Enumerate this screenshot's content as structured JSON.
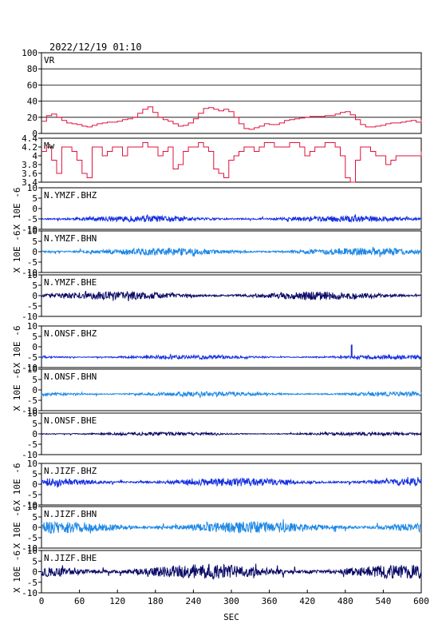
{
  "header": {
    "timestamp": "2022/12/19 01:10"
  },
  "chart_data": [
    {
      "type": "line",
      "label": "VR",
      "ylim": [
        0,
        100
      ],
      "yticks": [
        0,
        20,
        40,
        60,
        80,
        100
      ],
      "grid": true,
      "color": "#e0103a",
      "x": [
        0,
        8,
        16,
        24,
        32,
        40,
        48,
        56,
        64,
        72,
        80,
        88,
        96,
        104,
        112,
        120,
        128,
        136,
        144,
        152,
        160,
        168,
        176,
        184,
        192,
        200,
        208,
        216,
        224,
        232,
        240,
        248,
        256,
        264,
        272,
        280,
        288,
        296,
        304,
        312,
        320,
        328,
        336,
        344,
        352,
        360,
        368,
        376,
        384,
        392,
        400,
        408,
        416,
        424,
        432,
        440,
        448,
        456,
        464,
        472,
        480,
        488,
        496,
        504,
        512,
        520,
        528,
        536,
        544,
        552,
        560,
        568,
        576,
        584,
        592,
        600
      ],
      "values": [
        15,
        22,
        24,
        20,
        16,
        13,
        12,
        11,
        9,
        8,
        10,
        12,
        13,
        14,
        14,
        15,
        17,
        18,
        20,
        25,
        30,
        33,
        26,
        20,
        17,
        15,
        12,
        9,
        10,
        13,
        18,
        25,
        31,
        32,
        30,
        28,
        30,
        27,
        20,
        12,
        6,
        5,
        7,
        9,
        12,
        11,
        11,
        13,
        16,
        17,
        18,
        19,
        20,
        21,
        21,
        21,
        22,
        22,
        24,
        26,
        27,
        23,
        17,
        11,
        8,
        8,
        9,
        10,
        12,
        13,
        13,
        14,
        15,
        16,
        14,
        17
      ]
    },
    {
      "type": "line",
      "label": "Mw",
      "ylim": [
        3.4,
        4.4
      ],
      "yticks": [
        3.4,
        3.6,
        3.8,
        4.0,
        4.2,
        4.4
      ],
      "grid": false,
      "color": "#e0103a",
      "x": [
        0,
        8,
        16,
        24,
        32,
        40,
        48,
        56,
        64,
        72,
        80,
        88,
        96,
        104,
        112,
        120,
        128,
        136,
        144,
        152,
        160,
        168,
        176,
        184,
        192,
        200,
        208,
        216,
        224,
        232,
        240,
        248,
        256,
        264,
        272,
        280,
        288,
        296,
        304,
        312,
        320,
        328,
        336,
        344,
        352,
        360,
        368,
        376,
        384,
        392,
        400,
        408,
        416,
        424,
        432,
        440,
        448,
        456,
        464,
        472,
        480,
        488,
        496,
        504,
        512,
        520,
        528,
        536,
        544,
        552,
        560,
        568,
        576,
        584,
        592,
        600
      ],
      "values": [
        4.1,
        4.2,
        3.9,
        3.6,
        4.2,
        4.2,
        4.1,
        3.9,
        3.6,
        3.5,
        4.2,
        4.2,
        4.0,
        4.1,
        4.2,
        4.2,
        4.0,
        4.2,
        4.2,
        4.2,
        4.3,
        4.2,
        4.2,
        4.0,
        4.1,
        4.2,
        3.7,
        3.8,
        4.1,
        4.2,
        4.2,
        4.3,
        4.2,
        4.1,
        3.7,
        3.6,
        3.5,
        3.9,
        4.0,
        4.1,
        4.2,
        4.2,
        4.1,
        4.2,
        4.3,
        4.3,
        4.2,
        4.2,
        4.2,
        4.3,
        4.3,
        4.2,
        4.0,
        4.1,
        4.2,
        4.2,
        4.3,
        4.3,
        4.2,
        4.0,
        3.5,
        3.4,
        3.9,
        4.2,
        4.2,
        4.1,
        4.0,
        4.0,
        3.8,
        3.9,
        4.0,
        4.0,
        4.0,
        4.0,
        4.0,
        4.1
      ]
    },
    {
      "type": "line",
      "label": "N.YMZF.BHZ",
      "ylim": [
        -10,
        10
      ],
      "yticks": [
        -10,
        -5,
        0,
        5,
        10
      ],
      "ylabel": "X 10E -6",
      "color": "#1530e0",
      "baseline": -5,
      "amplitude": 1.5,
      "seed": 11,
      "spikes": []
    },
    {
      "type": "line",
      "label": "N.YMZF.BHN",
      "ylim": [
        -10,
        10
      ],
      "yticks": [
        -10,
        -5,
        0,
        5,
        10
      ],
      "ylabel": "X 10E -6",
      "color": "#1e88e5",
      "baseline": 0,
      "amplitude": 1.8,
      "seed": 23,
      "spikes": []
    },
    {
      "type": "line",
      "label": "N.YMZF.BHE",
      "ylim": [
        -10,
        10
      ],
      "yticks": [
        -10,
        -5,
        0,
        5,
        10
      ],
      "ylabel": "",
      "color": "#0a0a66",
      "baseline": 0,
      "amplitude": 2.0,
      "seed": 37,
      "spikes": []
    },
    {
      "type": "line",
      "label": "N.ONSF.BHZ",
      "ylim": [
        -10,
        10
      ],
      "yticks": [
        -10,
        -5,
        0,
        5,
        10
      ],
      "ylabel": "X 10E -6",
      "color": "#1530e0",
      "baseline": -5,
      "amplitude": 1.0,
      "seed": 41,
      "spikes": [
        {
          "x": 490,
          "y": 1
        }
      ]
    },
    {
      "type": "line",
      "label": "N.ONSF.BHN",
      "ylim": [
        -10,
        10
      ],
      "yticks": [
        -10,
        -5,
        0,
        5,
        10
      ],
      "ylabel": "X 10E -6",
      "color": "#1e88e5",
      "baseline": -2,
      "amplitude": 1.2,
      "seed": 53,
      "spikes": []
    },
    {
      "type": "line",
      "label": "N.ONSF.BHE",
      "ylim": [
        -10,
        10
      ],
      "yticks": [
        -10,
        -5,
        0,
        5,
        10
      ],
      "ylabel": "",
      "color": "#0a0a66",
      "baseline": 0,
      "amplitude": 0.8,
      "seed": 67,
      "spikes": []
    },
    {
      "type": "line",
      "label": "N.JIZF.BHZ",
      "ylim": [
        -10,
        10
      ],
      "yticks": [
        -10,
        -5,
        0,
        5,
        10
      ],
      "ylabel": "X 10E -6",
      "color": "#1530e0",
      "baseline": 1,
      "amplitude": 2.0,
      "seed": 71,
      "spikes": []
    },
    {
      "type": "line",
      "label": "N.JIZF.BHN",
      "ylim": [
        -10,
        10
      ],
      "yticks": [
        -10,
        -5,
        0,
        5,
        10
      ],
      "ylabel": "X 10E -6",
      "color": "#1e88e5",
      "baseline": 0,
      "amplitude": 3.0,
      "seed": 83,
      "spikes": []
    },
    {
      "type": "line",
      "label": "N.JIZF.BHE",
      "ylim": [
        -10,
        10
      ],
      "yticks": [
        -10,
        -5,
        0,
        5,
        10
      ],
      "ylabel": "X 10E -6",
      "color": "#0a0a66",
      "baseline": 0,
      "amplitude": 3.5,
      "seed": 97,
      "spikes": []
    }
  ],
  "x_axis": {
    "label": "SEC",
    "range": [
      0,
      600
    ],
    "ticks": [
      0,
      60,
      120,
      180,
      240,
      300,
      360,
      420,
      480,
      540,
      600
    ]
  }
}
